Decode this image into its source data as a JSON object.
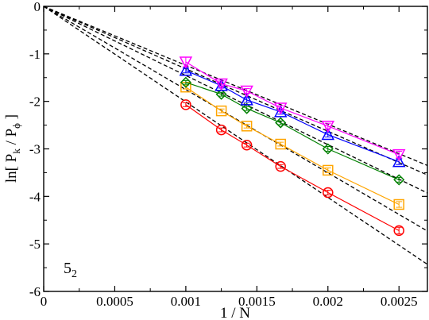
{
  "chart_data": {
    "type": "line",
    "title": "",
    "xlabel": "1 / N",
    "ylabel_parts": {
      "pre": "ln[ P",
      "sub1": "k",
      "mid": " / P",
      "sub2": "ϕ",
      "post": " ]"
    },
    "annotation": {
      "main": "5",
      "sub": "2"
    },
    "xlim": [
      0,
      0.0027
    ],
    "ylim": [
      -6,
      0
    ],
    "x_ticks": [
      {
        "value": 0,
        "label": "0"
      },
      {
        "value": 0.0005,
        "label": "0.0005"
      },
      {
        "value": 0.001,
        "label": "0.001"
      },
      {
        "value": 0.0015,
        "label": "0.0015"
      },
      {
        "value": 0.002,
        "label": "0.002"
      },
      {
        "value": 0.0025,
        "label": "0.0025"
      }
    ],
    "y_ticks": [
      {
        "value": 0,
        "label": "0"
      },
      {
        "value": -1,
        "label": "-1"
      },
      {
        "value": -2,
        "label": "-2"
      },
      {
        "value": -3,
        "label": "-3"
      },
      {
        "value": -4,
        "label": "-4"
      },
      {
        "value": -5,
        "label": "-5"
      },
      {
        "value": -6,
        "label": "-6"
      }
    ],
    "x": [
      0.001,
      0.00125,
      0.001429,
      0.001667,
      0.002,
      0.0025
    ],
    "series": [
      {
        "marker": "circle",
        "color": "#ff0000",
        "values": [
          -2.07,
          -2.6,
          -2.92,
          -3.37,
          -3.92,
          -4.72
        ],
        "errors": [
          0.04,
          0.04,
          0.04,
          0.04,
          0.05,
          0.07
        ]
      },
      {
        "marker": "square",
        "color": "#ffa500",
        "values": [
          -1.7,
          -2.2,
          -2.52,
          -2.9,
          -3.45,
          -4.17
        ],
        "errors": [
          0.04,
          0.04,
          0.04,
          0.04,
          0.05,
          0.06
        ]
      },
      {
        "marker": "diamond",
        "color": "#008000",
        "values": [
          -1.6,
          -1.85,
          -2.15,
          -2.45,
          -3.0,
          -3.65
        ],
        "errors": [
          0.04,
          0.04,
          0.04,
          0.04,
          0.05,
          0.05
        ]
      },
      {
        "marker": "triangle-up",
        "color": "#0000ff",
        "values": [
          -1.35,
          -1.67,
          -1.97,
          -2.22,
          -2.7,
          -3.27
        ],
        "errors": [
          0.05,
          0.05,
          0.05,
          0.05,
          0.05,
          0.06
        ]
      },
      {
        "marker": "triangle-down",
        "color": "#ff00ff",
        "values": [
          -1.17,
          -1.63,
          -1.78,
          -2.14,
          -2.52,
          -3.12
        ],
        "errors": [
          0.1,
          0.06,
          0.05,
          0.05,
          0.06,
          0.07
        ]
      }
    ],
    "fit_lines": [
      {
        "color": "#000000",
        "style": "dashed",
        "x": [
          0,
          0.0027
        ],
        "y": [
          0,
          -5.43
        ]
      },
      {
        "color": "#000000",
        "style": "dashed",
        "x": [
          0,
          0.0027
        ],
        "y": [
          0,
          -4.73
        ]
      },
      {
        "color": "#000000",
        "style": "dashed",
        "x": [
          0,
          0.0027
        ],
        "y": [
          0,
          -3.93
        ]
      },
      {
        "color": "#000000",
        "style": "dashed",
        "x": [
          0,
          0.0027
        ],
        "y": [
          0,
          -3.55
        ]
      },
      {
        "color": "#000000",
        "style": "dashed",
        "x": [
          0,
          0.0027
        ],
        "y": [
          0,
          -3.35
        ]
      }
    ]
  }
}
